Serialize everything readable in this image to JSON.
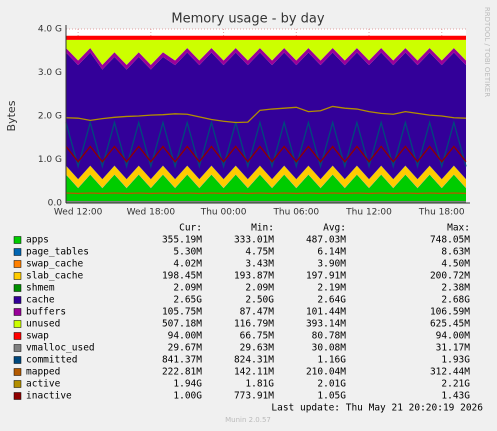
{
  "chart_data": {
    "type": "area",
    "title": "Memory usage - by day",
    "y_label": "Bytes",
    "watermark": "RRDTOOL / TOBI OETIKER",
    "footer": "Munin 2.0.57",
    "last_update": "Last update: Thu May 21 20:20:19 2026",
    "stats_header": [
      "Cur:",
      "Min:",
      "Avg:",
      "Max:"
    ],
    "grid": true,
    "ylim": [
      0,
      4000000000.0
    ],
    "yticks": [
      {
        "value": 0,
        "label": "0.0"
      },
      {
        "value": 1000000000.0,
        "label": "1.0 G"
      },
      {
        "value": 2000000000.0,
        "label": "2.0 G"
      },
      {
        "value": 3000000000.0,
        "label": "3.0 G"
      },
      {
        "value": 4000000000.0,
        "label": "4.0 G"
      }
    ],
    "categories": [
      null,
      "Wed 12:00",
      null,
      null,
      null,
      null,
      null,
      "Wed 18:00",
      null,
      null,
      null,
      null,
      null,
      "Thu 00:00",
      null,
      null,
      null,
      null,
      null,
      "Thu 06:00",
      null,
      null,
      null,
      null,
      null,
      "Thu 12:00",
      null,
      null,
      null,
      null,
      null,
      "Thu 18:00",
      null,
      null
    ],
    "series": [
      {
        "name": "apps",
        "style": "area",
        "color": "#00CC00",
        "stats": [
          "355.19M",
          "333.01M",
          "487.03M",
          "748.05M"
        ],
        "values": [
          650000000.0,
          340000000.0,
          650000000.0,
          340000000.0,
          650000000.0,
          340000000.0,
          650000000.0,
          340000000.0,
          650000000.0,
          340000000.0,
          650000000.0,
          340000000.0,
          650000000.0,
          340000000.0,
          650000000.0,
          340000000.0,
          650000000.0,
          340000000.0,
          650000000.0,
          340000000.0,
          650000000.0,
          340000000.0,
          650000000.0,
          340000000.0,
          650000000.0,
          340000000.0,
          650000000.0,
          340000000.0,
          650000000.0,
          340000000.0,
          650000000.0,
          340000000.0,
          650000000.0,
          340000000.0
        ]
      },
      {
        "name": "page_tables",
        "style": "area",
        "color": "#0066B3",
        "stats": [
          "5.30M",
          "4.75M",
          "6.14M",
          "8.63M"
        ],
        "values": [
          5300000.0,
          5300000.0,
          5300000.0,
          5300000.0,
          5300000.0,
          5300000.0,
          5300000.0,
          5300000.0,
          5300000.0,
          5300000.0,
          5300000.0,
          5300000.0,
          5300000.0,
          5300000.0,
          5300000.0,
          5300000.0,
          5300000.0,
          5300000.0,
          5300000.0,
          5300000.0,
          5300000.0,
          5300000.0,
          5300000.0,
          5300000.0,
          5300000.0,
          5300000.0,
          5300000.0,
          5300000.0,
          5300000.0,
          5300000.0,
          5300000.0,
          5300000.0,
          5300000.0,
          5300000.0
        ]
      },
      {
        "name": "swap_cache",
        "style": "area",
        "color": "#FF8000",
        "stats": [
          "4.02M",
          "3.43M",
          "3.90M",
          "4.50M"
        ],
        "values": [
          4000000.0,
          4000000.0,
          4000000.0,
          4000000.0,
          4000000.0,
          4000000.0,
          4000000.0,
          4000000.0,
          4000000.0,
          4000000.0,
          4000000.0,
          4000000.0,
          4000000.0,
          4000000.0,
          4000000.0,
          4000000.0,
          4000000.0,
          4000000.0,
          4000000.0,
          4000000.0,
          4000000.0,
          4000000.0,
          4000000.0,
          4000000.0,
          4000000.0,
          4000000.0,
          4000000.0,
          4000000.0,
          4000000.0,
          4000000.0,
          4000000.0,
          4000000.0,
          4000000.0,
          4000000.0
        ]
      },
      {
        "name": "slab_cache",
        "style": "area",
        "color": "#FFCC00",
        "stats": [
          "198.45M",
          "193.87M",
          "197.91M",
          "200.72M"
        ],
        "values": [
          198000000.0,
          198000000.0,
          198000000.0,
          198000000.0,
          198000000.0,
          198000000.0,
          198000000.0,
          198000000.0,
          198000000.0,
          198000000.0,
          198000000.0,
          198000000.0,
          198000000.0,
          198000000.0,
          198000000.0,
          198000000.0,
          198000000.0,
          198000000.0,
          198000000.0,
          198000000.0,
          198000000.0,
          198000000.0,
          198000000.0,
          198000000.0,
          198000000.0,
          198000000.0,
          198000000.0,
          198000000.0,
          198000000.0,
          198000000.0,
          198000000.0,
          198000000.0,
          198000000.0,
          198000000.0
        ]
      },
      {
        "name": "shmem",
        "style": "area",
        "color": "#008F00",
        "stats": [
          "2.09M",
          "2.09M",
          "2.19M",
          "2.38M"
        ],
        "values": [
          2100000.0,
          2100000.0,
          2100000.0,
          2100000.0,
          2100000.0,
          2100000.0,
          2100000.0,
          2100000.0,
          2100000.0,
          2100000.0,
          2100000.0,
          2100000.0,
          2100000.0,
          2100000.0,
          2100000.0,
          2100000.0,
          2100000.0,
          2100000.0,
          2100000.0,
          2100000.0,
          2100000.0,
          2100000.0,
          2100000.0,
          2100000.0,
          2100000.0,
          2100000.0,
          2100000.0,
          2100000.0,
          2100000.0,
          2100000.0,
          2100000.0,
          2100000.0,
          2100000.0,
          2100000.0
        ]
      },
      {
        "name": "cache",
        "style": "area",
        "color": "#330099",
        "stats": [
          "2.65G",
          "2.50G",
          "2.64G",
          "2.68G"
        ],
        "values": [
          2600000000.0,
          2620000000.0,
          2600000000.0,
          2520000000.0,
          2500000000.0,
          2520000000.0,
          2500000000.0,
          2520000000.0,
          2500000000.0,
          2620000000.0,
          2600000000.0,
          2620000000.0,
          2600000000.0,
          2620000000.0,
          2600000000.0,
          2620000000.0,
          2600000000.0,
          2620000000.0,
          2600000000.0,
          2620000000.0,
          2600000000.0,
          2620000000.0,
          2600000000.0,
          2620000000.0,
          2600000000.0,
          2620000000.0,
          2600000000.0,
          2620000000.0,
          2600000000.0,
          2620000000.0,
          2600000000.0,
          2620000000.0,
          2600000000.0,
          2620000000.0
        ]
      },
      {
        "name": "buffers",
        "style": "area",
        "color": "#990099",
        "stats": [
          "105.75M",
          "87.47M",
          "101.44M",
          "106.59M"
        ],
        "values": [
          105000000.0,
          105000000.0,
          105000000.0,
          105000000.0,
          105000000.0,
          105000000.0,
          105000000.0,
          105000000.0,
          105000000.0,
          105000000.0,
          105000000.0,
          105000000.0,
          105000000.0,
          105000000.0,
          105000000.0,
          105000000.0,
          105000000.0,
          105000000.0,
          105000000.0,
          105000000.0,
          105000000.0,
          105000000.0,
          105000000.0,
          105000000.0,
          105000000.0,
          105000000.0,
          105000000.0,
          105000000.0,
          105000000.0,
          105000000.0,
          105000000.0,
          105000000.0,
          105000000.0,
          105000000.0
        ]
      },
      {
        "name": "unused",
        "style": "area",
        "color": "#CCFF00",
        "stats": [
          "507.18M",
          "116.79M",
          "393.14M",
          "625.45M"
        ],
        "values": [
          185600000.0,
          475600000.0,
          185600000.0,
          575600000.0,
          285600000.0,
          575600000.0,
          285600000.0,
          575600000.0,
          285600000.0,
          475600000.0,
          185600000.0,
          475600000.0,
          185600000.0,
          475600000.0,
          185600000.0,
          475600000.0,
          185600000.0,
          475600000.0,
          185600000.0,
          475600000.0,
          185600000.0,
          475600000.0,
          185600000.0,
          475600000.0,
          185600000.0,
          475600000.0,
          185600000.0,
          475600000.0,
          185600000.0,
          475600000.0,
          185600000.0,
          475600000.0,
          185600000.0,
          475600000.0
        ]
      },
      {
        "name": "swap",
        "style": "area",
        "color": "#FF0000",
        "stats": [
          "94.00M",
          "66.75M",
          "80.78M",
          "94.00M"
        ],
        "values": [
          94000000.0,
          94000000.0,
          94000000.0,
          94000000.0,
          94000000.0,
          94000000.0,
          94000000.0,
          94000000.0,
          94000000.0,
          94000000.0,
          94000000.0,
          94000000.0,
          94000000.0,
          94000000.0,
          94000000.0,
          94000000.0,
          94000000.0,
          94000000.0,
          94000000.0,
          94000000.0,
          94000000.0,
          94000000.0,
          94000000.0,
          94000000.0,
          94000000.0,
          94000000.0,
          94000000.0,
          94000000.0,
          94000000.0,
          94000000.0,
          94000000.0,
          94000000.0,
          94000000.0,
          94000000.0
        ]
      },
      {
        "name": "vmalloc_used",
        "style": "line",
        "color": "#808080",
        "stats": [
          "29.67M",
          "29.63M",
          "30.08M",
          "31.17M"
        ],
        "values": [
          30000000.0,
          30000000.0,
          30000000.0,
          30000000.0,
          30000000.0,
          30000000.0,
          30000000.0,
          30000000.0,
          30000000.0,
          30000000.0,
          30000000.0,
          30000000.0,
          30000000.0,
          30000000.0,
          30000000.0,
          30000000.0,
          30000000.0,
          30000000.0,
          30000000.0,
          30000000.0,
          30000000.0,
          30000000.0,
          30000000.0,
          30000000.0,
          30000000.0,
          30000000.0,
          30000000.0,
          30000000.0,
          30000000.0,
          30000000.0,
          30000000.0,
          30000000.0,
          30000000.0,
          30000000.0
        ]
      },
      {
        "name": "committed",
        "style": "line",
        "color": "#00487D",
        "stats": [
          "841.37M",
          "824.31M",
          "1.16G",
          "1.93G"
        ],
        "values": [
          1850000000.0,
          840000000.0,
          1850000000.0,
          840000000.0,
          1850000000.0,
          840000000.0,
          1850000000.0,
          840000000.0,
          1850000000.0,
          840000000.0,
          1850000000.0,
          840000000.0,
          1850000000.0,
          840000000.0,
          1850000000.0,
          840000000.0,
          1850000000.0,
          840000000.0,
          1850000000.0,
          840000000.0,
          1850000000.0,
          840000000.0,
          1850000000.0,
          840000000.0,
          1850000000.0,
          840000000.0,
          1850000000.0,
          840000000.0,
          1850000000.0,
          840000000.0,
          1850000000.0,
          840000000.0,
          1850000000.0,
          840000000.0
        ]
      },
      {
        "name": "mapped",
        "style": "line",
        "color": "#B35A00",
        "stats": [
          "222.81M",
          "142.11M",
          "210.04M",
          "312.44M"
        ],
        "values": [
          230000000.0,
          220000000.0,
          230000000.0,
          220000000.0,
          230000000.0,
          220000000.0,
          230000000.0,
          220000000.0,
          230000000.0,
          220000000.0,
          230000000.0,
          220000000.0,
          230000000.0,
          220000000.0,
          230000000.0,
          220000000.0,
          230000000.0,
          220000000.0,
          230000000.0,
          220000000.0,
          230000000.0,
          220000000.0,
          230000000.0,
          220000000.0,
          230000000.0,
          220000000.0,
          230000000.0,
          220000000.0,
          230000000.0,
          220000000.0,
          230000000.0,
          220000000.0,
          230000000.0,
          220000000.0
        ]
      },
      {
        "name": "active",
        "style": "line",
        "color": "#B38F00",
        "stats": [
          "1.94G",
          "1.81G",
          "2.01G",
          "2.21G"
        ],
        "values": [
          1960000000.0,
          1950000000.0,
          1900000000.0,
          1940000000.0,
          1970000000.0,
          1990000000.0,
          2000000000.0,
          2020000000.0,
          2030000000.0,
          2050000000.0,
          2040000000.0,
          1980000000.0,
          1920000000.0,
          1880000000.0,
          1850000000.0,
          1860000000.0,
          2130000000.0,
          2160000000.0,
          2180000000.0,
          2200000000.0,
          2100000000.0,
          2120000000.0,
          2220000000.0,
          2180000000.0,
          2160000000.0,
          2100000000.0,
          2060000000.0,
          2040000000.0,
          2100000000.0,
          2060000000.0,
          2020000000.0,
          2000000000.0,
          1960000000.0,
          1950000000.0
        ]
      },
      {
        "name": "inactive",
        "style": "line",
        "color": "#8F0000",
        "stats": [
          "1.00G",
          "773.91M",
          "1.05G",
          "1.43G"
        ],
        "values": [
          1300000000.0,
          950000000.0,
          1300000000.0,
          950000000.0,
          1300000000.0,
          950000000.0,
          1300000000.0,
          950000000.0,
          1300000000.0,
          950000000.0,
          1300000000.0,
          950000000.0,
          1300000000.0,
          950000000.0,
          1300000000.0,
          950000000.0,
          1300000000.0,
          950000000.0,
          1300000000.0,
          950000000.0,
          1300000000.0,
          950000000.0,
          1300000000.0,
          950000000.0,
          1300000000.0,
          950000000.0,
          1300000000.0,
          950000000.0,
          1300000000.0,
          950000000.0,
          1300000000.0,
          950000000.0,
          1300000000.0,
          950000000.0
        ]
      }
    ]
  }
}
